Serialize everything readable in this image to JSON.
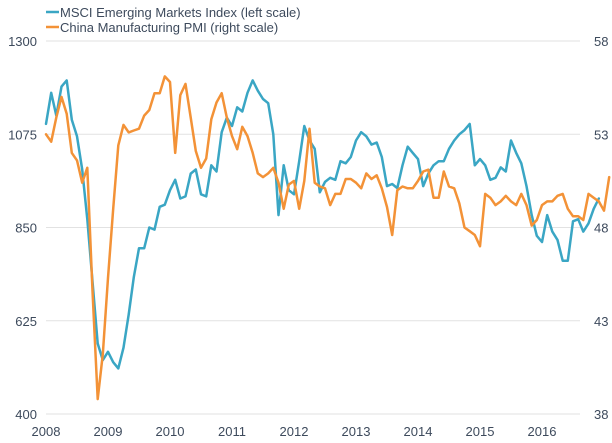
{
  "chart_data": {
    "type": "line",
    "title": "",
    "xlabel": "",
    "ylabel_left": "",
    "ylabel_right": "",
    "x_ticks": [
      "2008",
      "2009",
      "2010",
      "2011",
      "2012",
      "2013",
      "2014",
      "2015",
      "2016"
    ],
    "x_range": [
      2008.0,
      2016.62
    ],
    "y_left": {
      "ticks": [
        "1300",
        "1075",
        "850",
        "625",
        "400"
      ],
      "range": [
        400,
        1300
      ]
    },
    "y_right": {
      "ticks": [
        "58",
        "53",
        "48",
        "43",
        "38"
      ],
      "range": [
        38,
        58
      ]
    },
    "grid": "horizontal",
    "legend_position": "top-left",
    "x_start": 2008.0,
    "x_step_months": 1,
    "series": [
      {
        "name": "MSCI Emerging Markets Index (left scale)",
        "axis": "left",
        "color": "#3aa6c4",
        "values": [
          1100,
          1175,
          1120,
          1190,
          1205,
          1110,
          1070,
          990,
          870,
          720,
          570,
          530,
          550,
          525,
          510,
          560,
          640,
          730,
          800,
          800,
          850,
          845,
          900,
          905,
          940,
          965,
          920,
          925,
          980,
          990,
          930,
          925,
          1000,
          985,
          1080,
          1115,
          1095,
          1140,
          1130,
          1175,
          1205,
          1180,
          1160,
          1150,
          1075,
          880,
          1000,
          940,
          930,
          1010,
          1095,
          1060,
          1040,
          935,
          960,
          970,
          965,
          1010,
          1005,
          1020,
          1060,
          1080,
          1070,
          1050,
          1055,
          1020,
          950,
          955,
          945,
          1000,
          1045,
          1030,
          1015,
          950,
          980,
          1000,
          1010,
          1010,
          1040,
          1060,
          1075,
          1085,
          1100,
          1000,
          1015,
          1000,
          965,
          970,
          995,
          985,
          1060,
          1030,
          1005,
          950,
          880,
          830,
          815,
          880,
          840,
          820,
          770,
          770,
          865,
          870,
          840,
          860,
          895,
          920
        ]
      },
      {
        "name": "China Manufacturing PMI (right scale)",
        "axis": "right",
        "color": "#f39237",
        "values": [
          53.0,
          52.6,
          53.9,
          55.0,
          54.1,
          52.0,
          51.6,
          50.4,
          51.2,
          44.6,
          38.8,
          41.2,
          45.3,
          49.0,
          52.4,
          53.5,
          53.1,
          53.2,
          53.3,
          54.0,
          54.3,
          55.2,
          55.2,
          56.1,
          55.8,
          52.0,
          55.1,
          55.7,
          53.9,
          52.1,
          51.2,
          51.7,
          53.8,
          54.7,
          55.2,
          53.9,
          52.9,
          52.2,
          53.4,
          52.9,
          52.0,
          50.9,
          50.7,
          50.9,
          51.2,
          50.4,
          49.0,
          50.3,
          50.5,
          49.0,
          50.5,
          53.3,
          50.4,
          50.2,
          50.1,
          49.2,
          49.8,
          49.8,
          50.6,
          50.6,
          50.4,
          50.1,
          50.9,
          50.6,
          50.8,
          50.1,
          49.1,
          47.6,
          50.0,
          50.2,
          50.1,
          50.1,
          50.5,
          51.0,
          51.1,
          49.6,
          49.6,
          51.0,
          50.2,
          50.1,
          49.3,
          48.0,
          47.8,
          47.6,
          47.0,
          49.8,
          49.6,
          49.2,
          49.4,
          49.7,
          49.4,
          49.2,
          49.8,
          49.2,
          48.1,
          48.4,
          49.2,
          49.4,
          49.4,
          49.7,
          49.8,
          49.0,
          48.6,
          48.6,
          48.4,
          49.8,
          49.6,
          49.4,
          48.9,
          50.7
        ]
      }
    ]
  }
}
